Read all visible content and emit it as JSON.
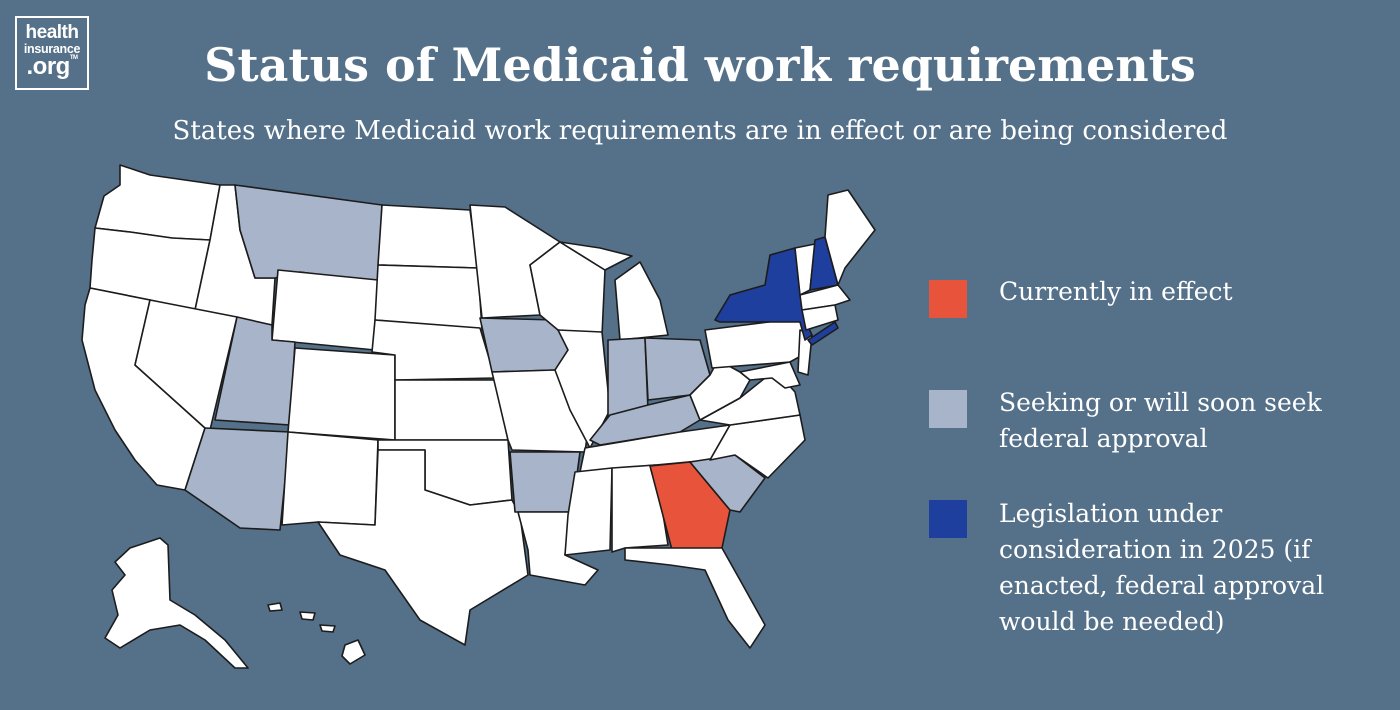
{
  "logo": {
    "line1": "health",
    "line2": "insurance",
    "line3": ".org",
    "tm": "TM"
  },
  "title": "Status of Medicaid work requirements",
  "subtitle": "States where Medicaid work requirements are in effect or are being considered",
  "colors": {
    "background": "#557089",
    "in_effect": "#E8533C",
    "seeking": "#A7B4C9",
    "legislation": "#1F3F9E",
    "none": "#FFFFFF"
  },
  "legend": [
    {
      "key": "in_effect",
      "label": "Currently in effect"
    },
    {
      "key": "seeking",
      "label": "Seeking or will soon seek federal approval"
    },
    {
      "key": "legislation",
      "label": "Legislation under consideration in 2025 (if enacted, federal approval would be needed)"
    }
  ],
  "map_states": {
    "in_effect": [
      "Georgia"
    ],
    "seeking": [
      "Montana",
      "Utah",
      "Arizona",
      "Iowa",
      "Arkansas",
      "Indiana",
      "Ohio",
      "Kentucky",
      "South Carolina"
    ],
    "legislation": [
      "New York",
      "New Hampshire"
    ]
  }
}
